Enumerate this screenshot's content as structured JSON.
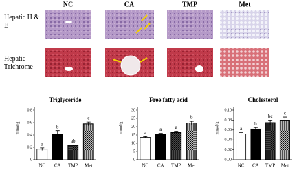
{
  "panel": {
    "columns": [
      "NC",
      "CA",
      "TMP",
      "Met"
    ],
    "rows": [
      "Hepatic H & E",
      "Hepatic Trichrome"
    ]
  },
  "chart_data": [
    {
      "type": "bar",
      "title": "Triglyceride",
      "ylabel": "mmol/g",
      "categories": [
        "NC",
        "CA",
        "TMP",
        "Met"
      ],
      "values": [
        0.17,
        0.41,
        0.23,
        0.58
      ],
      "errors": [
        0.02,
        0.06,
        0.01,
        0.03
      ],
      "annotations": [
        "a",
        "b",
        "ab",
        "c"
      ],
      "colors": [
        "#ffffff",
        "#000000",
        "#555555",
        "#dddddd"
      ],
      "hatch": [
        false,
        false,
        true,
        true
      ],
      "ylim": [
        0,
        0.8
      ],
      "yticks": [
        0,
        0.2,
        0.4,
        0.6,
        0.8
      ]
    },
    {
      "type": "bar",
      "title": "Free fatty acid",
      "ylabel": "mmol/g",
      "categories": [
        "NC",
        "CA",
        "TMP",
        "Met"
      ],
      "values": [
        13.5,
        15.5,
        16.5,
        22.3
      ],
      "errors": [
        0.5,
        0.5,
        0.8,
        1
      ],
      "annotations": [
        "a",
        "a",
        "a",
        "b"
      ],
      "colors": [
        "#ffffff",
        "#000000",
        "#555555",
        "#dddddd"
      ],
      "hatch": [
        false,
        false,
        true,
        true
      ],
      "ylim": [
        0,
        30
      ],
      "yticks": [
        0,
        5,
        10,
        15,
        20,
        25,
        30
      ]
    },
    {
      "type": "bar",
      "title": "Cholesterol",
      "ylabel": "mmol/g",
      "categories": [
        "NC",
        "CA",
        "TMP",
        "Met"
      ],
      "values": [
        0.052,
        0.062,
        0.075,
        0.08
      ],
      "errors": [
        0.003,
        0.003,
        0.005,
        0.006
      ],
      "annotations": [
        "a",
        "b",
        "bc",
        "c"
      ],
      "colors": [
        "#ffffff",
        "#000000",
        "#555555",
        "#dddddd"
      ],
      "hatch": [
        false,
        false,
        true,
        true
      ],
      "ylim": [
        0,
        0.1
      ],
      "yticks": [
        {
          "value": 0,
          "label": "0.00"
        },
        0.02,
        0.04,
        0.06,
        0.08,
        {
          "value": 0.1,
          "label": "0.10"
        }
      ]
    }
  ]
}
